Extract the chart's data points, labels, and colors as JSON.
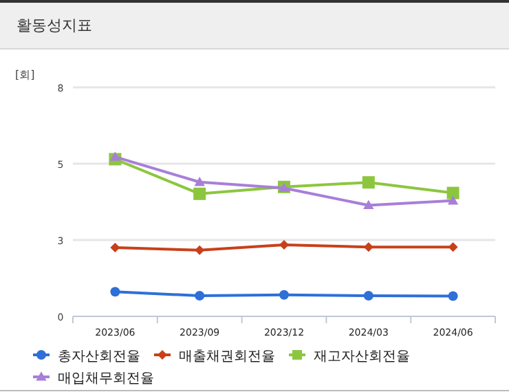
{
  "chart_data": {
    "type": "line",
    "title": "활동성지표",
    "ylabel": "[회]",
    "categories": [
      "2023/06",
      "2023/09",
      "2023/12",
      "2024/03",
      "2024/06"
    ],
    "ylim": [
      0,
      8
    ],
    "yticks": [
      0,
      {
        "value": 2.667,
        "label": "3"
      },
      {
        "value": 5.333,
        "label": "5"
      },
      8
    ],
    "grid": "y",
    "legend": "bottom",
    "line_style": "solid",
    "series": [
      {
        "name": "총자산회전율",
        "color": "#2e6fd8",
        "marker": "circle",
        "values": [
          0.86,
          0.72,
          0.75,
          0.72,
          0.71
        ]
      },
      {
        "name": "매출채권회전율",
        "color": "#c8401a",
        "marker": "diamond",
        "values": [
          2.4,
          2.31,
          2.5,
          2.42,
          2.42
        ]
      },
      {
        "name": "재고자산회전율",
        "color": "#8cc63f",
        "marker": "square",
        "values": [
          5.49,
          4.28,
          4.52,
          4.68,
          4.31
        ]
      },
      {
        "name": "매입채무회전율",
        "color": "#a87fd8",
        "marker": "triangle",
        "values": [
          5.57,
          4.69,
          4.48,
          3.88,
          4.04
        ]
      }
    ]
  }
}
